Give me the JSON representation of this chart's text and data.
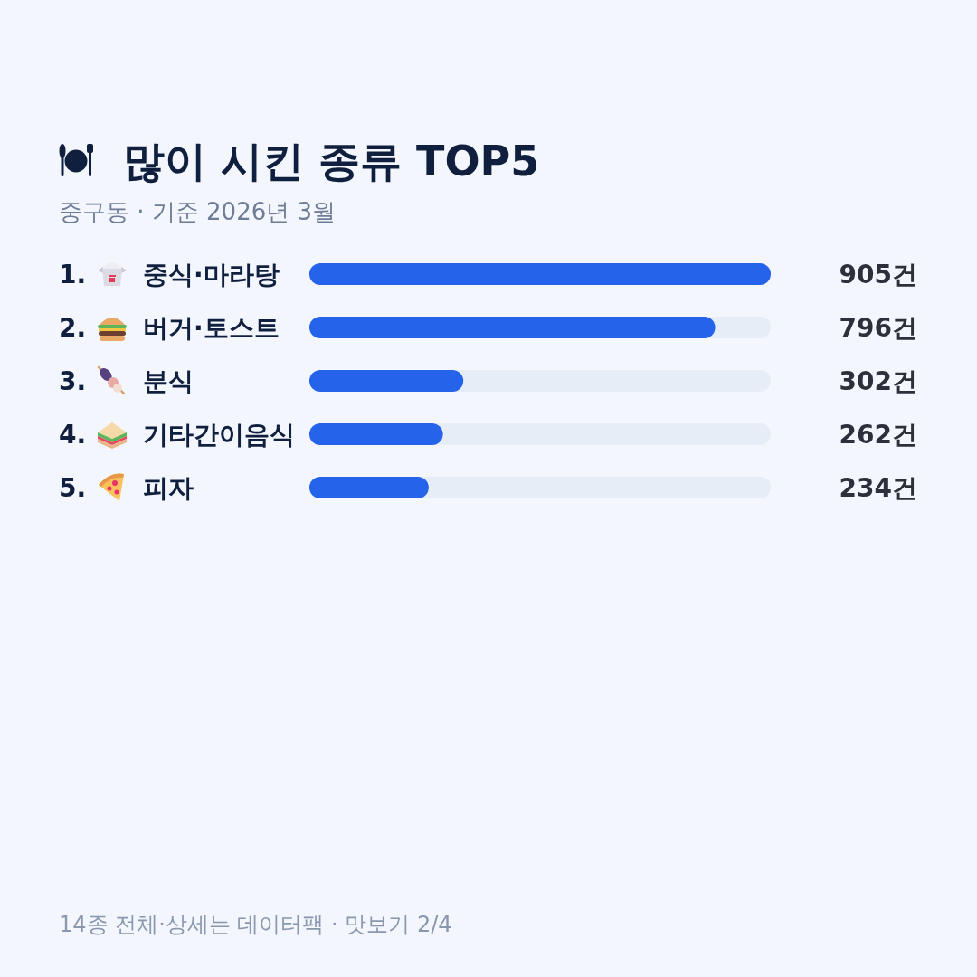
{
  "chart_data": {
    "type": "bar",
    "orientation": "horizontal",
    "title": "많이 시킨 종류 TOP5",
    "subtitle": "중구동 · 기준 2026년 3월",
    "categories": [
      "중식·마라탕",
      "버거·토스트",
      "분식",
      "기타간이음식",
      "피자"
    ],
    "values": [
      905,
      796,
      302,
      262,
      234
    ],
    "color": "#2563eb",
    "value_labels": [
      "905건",
      "796건",
      "302건",
      "262건",
      "234건"
    ],
    "annotations": [
      "1.",
      "2.",
      "3.",
      "4.",
      "5.",
      "14종 전체·상세는 데이터팩 · 맛보기 2/4"
    ]
  }
}
